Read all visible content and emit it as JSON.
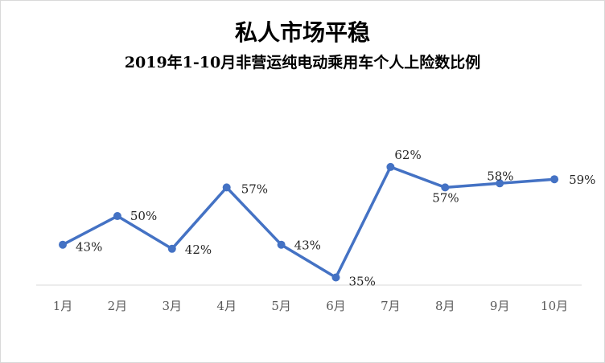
{
  "chart_data": {
    "type": "line",
    "title": "私人市场平稳",
    "subtitle": "2019年1-10月非营运纯电动乘用车个人上险数比例",
    "categories": [
      "1月",
      "2月",
      "3月",
      "4月",
      "5月",
      "6月",
      "7月",
      "8月",
      "9月",
      "10月"
    ],
    "series": [
      {
        "values": [
          43,
          50,
          42,
          57,
          43,
          35,
          62,
          57,
          58,
          59
        ],
        "labels": [
          "43%",
          "50%",
          "42%",
          "57%",
          "43%",
          "35%",
          "62%",
          "57%",
          "58%",
          "59%"
        ]
      }
    ],
    "grid": false,
    "legend": "none",
    "colors": {
      "line": "#4472c4",
      "axis": "#d9d9d9"
    }
  }
}
